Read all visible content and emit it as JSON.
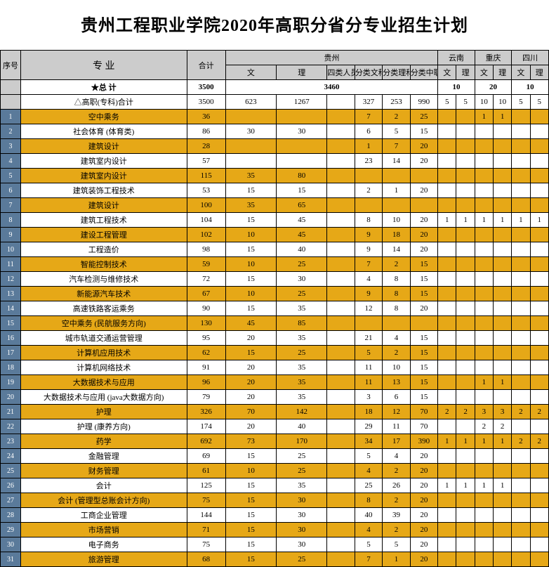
{
  "title": "贵州工程职业学院2020年高职分省分专业招生计划",
  "headers": {
    "seq": "序号",
    "major": "专 业",
    "total": "合计",
    "gz": "贵州",
    "yn": "云南",
    "cq": "重庆",
    "sc": "四川",
    "wen": "文",
    "li": "理",
    "sl": "四类人员",
    "fw": "分类文科",
    "fl": "分类理科",
    "fz": "分类中职"
  },
  "summary": {
    "label": "★总 计",
    "total": "3500",
    "gz": "3460",
    "yn": "10",
    "cq": "20",
    "sc": "10"
  },
  "subtotal": {
    "label": "△高职(专科)合计",
    "total": "3500",
    "v": [
      "623",
      "1267",
      "",
      "327",
      "253",
      "990",
      "5",
      "5",
      "10",
      "10",
      "5",
      "5"
    ]
  },
  "rows": [
    {
      "n": "1",
      "m": "空中乘务",
      "t": "36",
      "v": [
        "",
        "",
        "",
        "7",
        "2",
        "25",
        "",
        "",
        "1",
        "1",
        "",
        ""
      ],
      "c": "o"
    },
    {
      "n": "2",
      "m": "社会体育 (体育类)",
      "t": "86",
      "v": [
        "30",
        "30",
        "",
        "6",
        "5",
        "15",
        "",
        "",
        "",
        "",
        "",
        ""
      ],
      "c": "w"
    },
    {
      "n": "3",
      "m": "建筑设计",
      "t": "28",
      "v": [
        "",
        "",
        "",
        "1",
        "7",
        "20",
        "",
        "",
        "",
        "",
        "",
        ""
      ],
      "c": "o"
    },
    {
      "n": "4",
      "m": "建筑室内设计",
      "t": "57",
      "v": [
        "",
        "",
        "",
        "23",
        "14",
        "20",
        "",
        "",
        "",
        "",
        "",
        ""
      ],
      "c": "w"
    },
    {
      "n": "5",
      "m": "建筑室内设计",
      "t": "115",
      "v": [
        "35",
        "80",
        "",
        "",
        "",
        "",
        "",
        "",
        "",
        "",
        "",
        ""
      ],
      "c": "o"
    },
    {
      "n": "6",
      "m": "建筑装饰工程技术",
      "t": "53",
      "v": [
        "15",
        "15",
        "",
        "2",
        "1",
        "20",
        "",
        "",
        "",
        "",
        "",
        ""
      ],
      "c": "w"
    },
    {
      "n": "7",
      "m": "建筑设计",
      "t": "100",
      "v": [
        "35",
        "65",
        "",
        "",
        "",
        "",
        "",
        "",
        "",
        "",
        "",
        ""
      ],
      "c": "o"
    },
    {
      "n": "8",
      "m": "建筑工程技术",
      "t": "104",
      "v": [
        "15",
        "45",
        "",
        "8",
        "10",
        "20",
        "1",
        "1",
        "1",
        "1",
        "1",
        "1"
      ],
      "c": "w"
    },
    {
      "n": "9",
      "m": "建设工程管理",
      "t": "102",
      "v": [
        "10",
        "45",
        "",
        "9",
        "18",
        "20",
        "",
        "",
        "",
        "",
        "",
        ""
      ],
      "c": "o"
    },
    {
      "n": "10",
      "m": "工程造价",
      "t": "98",
      "v": [
        "15",
        "40",
        "",
        "9",
        "14",
        "20",
        "",
        "",
        "",
        "",
        "",
        ""
      ],
      "c": "w"
    },
    {
      "n": "11",
      "m": "智能控制技术",
      "t": "59",
      "v": [
        "10",
        "25",
        "",
        "7",
        "2",
        "15",
        "",
        "",
        "",
        "",
        "",
        ""
      ],
      "c": "o"
    },
    {
      "n": "12",
      "m": "汽车检测与维修技术",
      "t": "72",
      "v": [
        "15",
        "30",
        "",
        "4",
        "8",
        "15",
        "",
        "",
        "",
        "",
        "",
        ""
      ],
      "c": "w"
    },
    {
      "n": "13",
      "m": "新能源汽车技术",
      "t": "67",
      "v": [
        "10",
        "25",
        "",
        "9",
        "8",
        "15",
        "",
        "",
        "",
        "",
        "",
        ""
      ],
      "c": "o"
    },
    {
      "n": "14",
      "m": "高速铁路客运乘务",
      "t": "90",
      "v": [
        "15",
        "35",
        "",
        "12",
        "8",
        "20",
        "",
        "",
        "",
        "",
        "",
        ""
      ],
      "c": "w"
    },
    {
      "n": "15",
      "m": "空中乘务 (民航服务方向)",
      "t": "130",
      "v": [
        "45",
        "85",
        "",
        "",
        "",
        "",
        "",
        "",
        "",
        "",
        "",
        ""
      ],
      "c": "o"
    },
    {
      "n": "16",
      "m": "城市轨道交通运营管理",
      "t": "95",
      "v": [
        "20",
        "35",
        "",
        "21",
        "4",
        "15",
        "",
        "",
        "",
        "",
        "",
        ""
      ],
      "c": "w"
    },
    {
      "n": "17",
      "m": "计算机应用技术",
      "t": "62",
      "v": [
        "15",
        "25",
        "",
        "5",
        "2",
        "15",
        "",
        "",
        "",
        "",
        "",
        ""
      ],
      "c": "o"
    },
    {
      "n": "18",
      "m": "计算机网络技术",
      "t": "91",
      "v": [
        "20",
        "35",
        "",
        "11",
        "10",
        "15",
        "",
        "",
        "",
        "",
        "",
        ""
      ],
      "c": "w"
    },
    {
      "n": "19",
      "m": "大数据技术与应用",
      "t": "96",
      "v": [
        "20",
        "35",
        "",
        "11",
        "13",
        "15",
        "",
        "",
        "1",
        "1",
        "",
        ""
      ],
      "c": "o"
    },
    {
      "n": "20",
      "m": "大数据技术与应用 (java大数据方向)",
      "t": "79",
      "v": [
        "20",
        "35",
        "",
        "3",
        "6",
        "15",
        "",
        "",
        "",
        "",
        "",
        ""
      ],
      "c": "w"
    },
    {
      "n": "21",
      "m": "护理",
      "t": "326",
      "v": [
        "70",
        "142",
        "",
        "18",
        "12",
        "70",
        "2",
        "2",
        "3",
        "3",
        "2",
        "2"
      ],
      "c": "o"
    },
    {
      "n": "22",
      "m": "护理 (康养方向)",
      "t": "174",
      "v": [
        "20",
        "40",
        "",
        "29",
        "11",
        "70",
        "",
        "",
        "2",
        "2",
        "",
        ""
      ],
      "c": "w"
    },
    {
      "n": "23",
      "m": "药学",
      "t": "692",
      "v": [
        "73",
        "170",
        "",
        "34",
        "17",
        "390",
        "1",
        "1",
        "1",
        "1",
        "2",
        "2"
      ],
      "c": "o"
    },
    {
      "n": "24",
      "m": "金融管理",
      "t": "69",
      "v": [
        "15",
        "25",
        "",
        "5",
        "4",
        "20",
        "",
        "",
        "",
        "",
        "",
        ""
      ],
      "c": "w"
    },
    {
      "n": "25",
      "m": "财务管理",
      "t": "61",
      "v": [
        "10",
        "25",
        "",
        "4",
        "2",
        "20",
        "",
        "",
        "",
        "",
        "",
        ""
      ],
      "c": "o"
    },
    {
      "n": "26",
      "m": "会计",
      "t": "125",
      "v": [
        "15",
        "35",
        "",
        "25",
        "26",
        "20",
        "1",
        "1",
        "1",
        "1",
        "",
        ""
      ],
      "c": "w"
    },
    {
      "n": "27",
      "m": "会计 (管理型总账会计方向)",
      "t": "75",
      "v": [
        "15",
        "30",
        "",
        "8",
        "2",
        "20",
        "",
        "",
        "",
        "",
        "",
        ""
      ],
      "c": "o"
    },
    {
      "n": "28",
      "m": "工商企业管理",
      "t": "144",
      "v": [
        "15",
        "30",
        "",
        "40",
        "39",
        "20",
        "",
        "",
        "",
        "",
        "",
        ""
      ],
      "c": "w"
    },
    {
      "n": "29",
      "m": "市场营销",
      "t": "71",
      "v": [
        "15",
        "30",
        "",
        "4",
        "2",
        "20",
        "",
        "",
        "",
        "",
        "",
        ""
      ],
      "c": "o"
    },
    {
      "n": "30",
      "m": "电子商务",
      "t": "75",
      "v": [
        "15",
        "30",
        "",
        "5",
        "5",
        "20",
        "",
        "",
        "",
        "",
        "",
        ""
      ],
      "c": "w"
    },
    {
      "n": "31",
      "m": "旅游管理",
      "t": "68",
      "v": [
        "15",
        "25",
        "",
        "7",
        "1",
        "20",
        "",
        "",
        "",
        "",
        "",
        ""
      ],
      "c": "o"
    }
  ]
}
